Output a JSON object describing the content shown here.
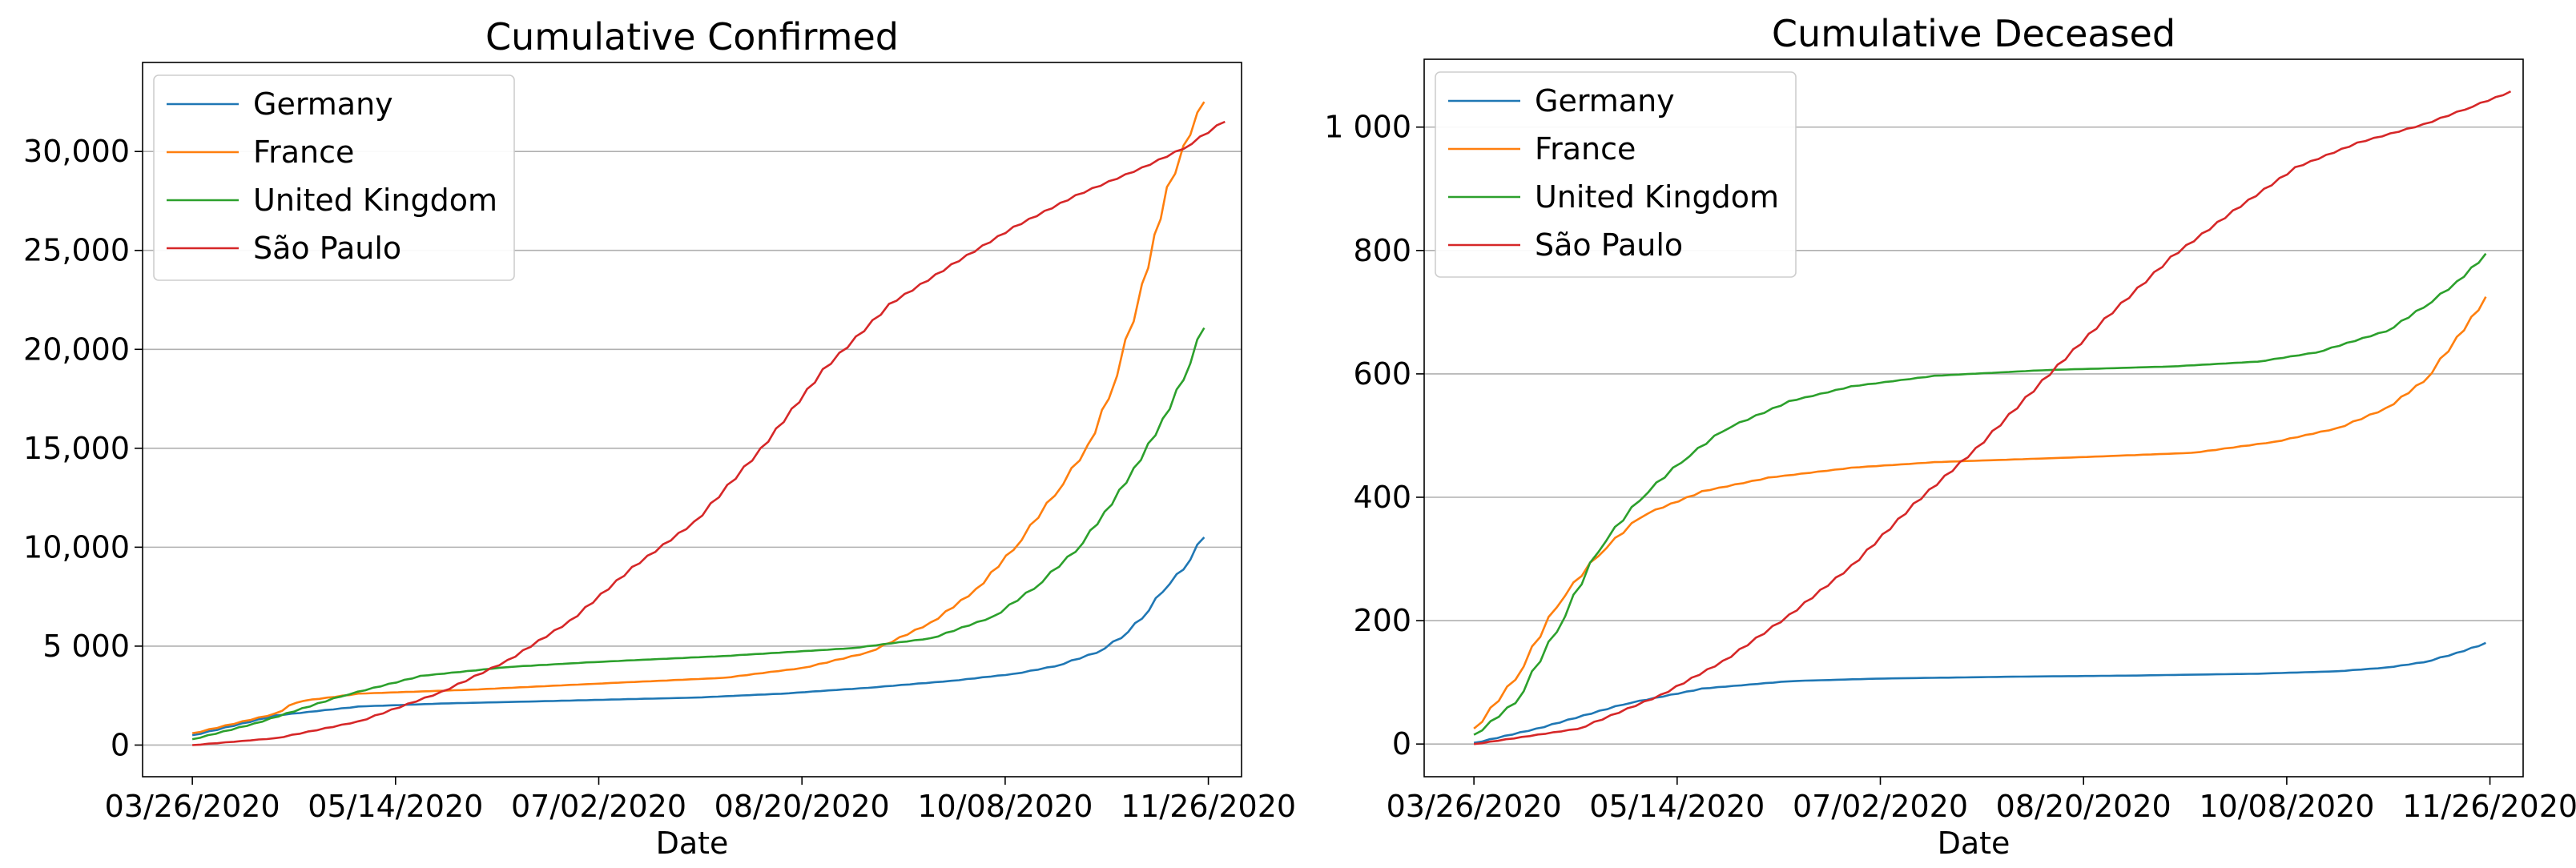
{
  "chart_data": [
    {
      "type": "line",
      "title": "Cumulative Confirmed",
      "xlabel": "Date",
      "ylabel": "",
      "x_ticks": [
        "03/26/2020",
        "05/14/2020",
        "07/02/2020",
        "08/20/2020",
        "10/08/2020",
        "11/26/2020"
      ],
      "xlim": [
        "2020-03-14",
        "2020-12-04"
      ],
      "ylim": [
        -1600,
        34500
      ],
      "y_ticks": [
        0,
        5000,
        10000,
        15000,
        20000,
        25000,
        30000
      ],
      "y_tick_labels": [
        "0",
        "5 000",
        "10,000",
        "15,000",
        "20,000",
        "25,000",
        "30,000"
      ],
      "grid": "horizontal",
      "legend": "top-left",
      "series": [
        {
          "name": "Germany",
          "color": "#1f77b4",
          "points": [
            [
              "2020-03-26",
              500
            ],
            [
              "2020-04-15",
              1500
            ],
            [
              "2020-05-05",
              1950
            ],
            [
              "2020-05-25",
              2100
            ],
            [
              "2020-06-15",
              2200
            ],
            [
              "2020-07-05",
              2300
            ],
            [
              "2020-07-25",
              2400
            ],
            [
              "2020-08-15",
              2600
            ],
            [
              "2020-09-05",
              2900
            ],
            [
              "2020-09-25",
              3250
            ],
            [
              "2020-10-10",
              3600
            ],
            [
              "2020-10-20",
              4000
            ],
            [
              "2020-10-30",
              4700
            ],
            [
              "2020-11-05",
              5500
            ],
            [
              "2020-11-10",
              6500
            ],
            [
              "2020-11-15",
              7900
            ],
            [
              "2020-11-20",
              9000
            ],
            [
              "2020-11-25",
              10700
            ]
          ]
        },
        {
          "name": "France",
          "color": "#ff7f0e",
          "points": [
            [
              "2020-03-26",
              600
            ],
            [
              "2020-04-15",
              1600
            ],
            [
              "2020-04-20",
              2200
            ],
            [
              "2020-05-05",
              2600
            ],
            [
              "2020-06-01",
              2800
            ],
            [
              "2020-07-01",
              3100
            ],
            [
              "2020-08-01",
              3400
            ],
            [
              "2020-08-20",
              3900
            ],
            [
              "2020-09-05",
              4700
            ],
            [
              "2020-09-20",
              6200
            ],
            [
              "2020-10-01",
              7900
            ],
            [
              "2020-10-10",
              10000
            ],
            [
              "2020-10-20",
              12800
            ],
            [
              "2020-10-28",
              15200
            ],
            [
              "2020-11-02",
              17800
            ],
            [
              "2020-11-06",
              20500
            ],
            [
              "2020-11-10",
              23300
            ],
            [
              "2020-11-13",
              25800
            ],
            [
              "2020-11-16",
              28200
            ],
            [
              "2020-11-20",
              30300
            ],
            [
              "2020-11-25",
              32800
            ]
          ]
        },
        {
          "name": "United Kingdom",
          "color": "#2ca02c",
          "points": [
            [
              "2020-03-26",
              300
            ],
            [
              "2020-04-10",
              1100
            ],
            [
              "2020-05-01",
              2500
            ],
            [
              "2020-05-20",
              3500
            ],
            [
              "2020-06-10",
              3950
            ],
            [
              "2020-07-01",
              4200
            ],
            [
              "2020-08-01",
              4500
            ],
            [
              "2020-09-01",
              4900
            ],
            [
              "2020-09-20",
              5400
            ],
            [
              "2020-10-05",
              6500
            ],
            [
              "2020-10-15",
              8000
            ],
            [
              "2020-10-25",
              9900
            ],
            [
              "2020-11-01",
              11800
            ],
            [
              "2020-11-08",
              14000
            ],
            [
              "2020-11-15",
              16500
            ],
            [
              "2020-11-20",
              18700
            ],
            [
              "2020-11-25",
              21400
            ]
          ]
        },
        {
          "name": "São Paulo",
          "color": "#d62728",
          "points": [
            [
              "2020-03-26",
              0
            ],
            [
              "2020-04-15",
              350
            ],
            [
              "2020-05-05",
              1200
            ],
            [
              "2020-05-25",
              2700
            ],
            [
              "2020-06-10",
              4300
            ],
            [
              "2020-06-25",
              6300
            ],
            [
              "2020-07-10",
              9000
            ],
            [
              "2020-07-25",
              11300
            ],
            [
              "2020-08-10",
              15000
            ],
            [
              "2020-08-25",
              19000
            ],
            [
              "2020-09-10",
              22300
            ],
            [
              "2020-09-25",
              24300
            ],
            [
              "2020-10-10",
              26200
            ],
            [
              "2020-10-25",
              27800
            ],
            [
              "2020-11-10",
              29200
            ],
            [
              "2020-11-20",
              30200
            ],
            [
              "2020-11-30",
              31600
            ]
          ]
        }
      ]
    },
    {
      "type": "line",
      "title": "Cumulative Deceased",
      "xlabel": "Date",
      "ylabel": "",
      "x_ticks": [
        "03/26/2020",
        "05/14/2020",
        "07/02/2020",
        "08/20/2020",
        "10/08/2020",
        "11/26/2020"
      ],
      "xlim": [
        "2020-03-14",
        "2020-12-04"
      ],
      "ylim": [
        -53,
        1110
      ],
      "y_ticks": [
        0,
        200,
        400,
        600,
        800,
        1000
      ],
      "y_tick_labels": [
        "0",
        "200",
        "400",
        "600",
        "800",
        "1 000"
      ],
      "grid": "horizontal",
      "legend": "top-left",
      "series": [
        {
          "name": "Germany",
          "color": "#1f77b4",
          "points": [
            [
              "2020-03-26",
              2
            ],
            [
              "2020-04-10",
              25
            ],
            [
              "2020-05-01",
              65
            ],
            [
              "2020-05-20",
              90
            ],
            [
              "2020-06-10",
              102
            ],
            [
              "2020-07-01",
              106
            ],
            [
              "2020-08-01",
              109
            ],
            [
              "2020-09-01",
              111
            ],
            [
              "2020-10-01",
              114
            ],
            [
              "2020-10-20",
              118
            ],
            [
              "2020-11-01",
              124
            ],
            [
              "2020-11-10",
              133
            ],
            [
              "2020-11-18",
              148
            ],
            [
              "2020-11-25",
              164
            ]
          ]
        },
        {
          "name": "France",
          "color": "#ff7f0e",
          "points": [
            [
              "2020-03-26",
              25
            ],
            [
              "2020-04-05",
              110
            ],
            [
              "2020-04-15",
              230
            ],
            [
              "2020-04-25",
              310
            ],
            [
              "2020-05-05",
              370
            ],
            [
              "2020-05-20",
              410
            ],
            [
              "2020-06-05",
              432
            ],
            [
              "2020-06-25",
              448
            ],
            [
              "2020-07-15",
              457
            ],
            [
              "2020-08-15",
              464
            ],
            [
              "2020-09-15",
              472
            ],
            [
              "2020-10-05",
              490
            ],
            [
              "2020-10-20",
              512
            ],
            [
              "2020-11-01",
              545
            ],
            [
              "2020-11-10",
              590
            ],
            [
              "2020-11-18",
              660
            ],
            [
              "2020-11-25",
              725
            ]
          ]
        },
        {
          "name": "United Kingdom",
          "color": "#2ca02c",
          "points": [
            [
              "2020-03-26",
              15
            ],
            [
              "2020-04-05",
              70
            ],
            [
              "2020-04-15",
              190
            ],
            [
              "2020-04-25",
              320
            ],
            [
              "2020-05-05",
              400
            ],
            [
              "2020-05-15",
              460
            ],
            [
              "2020-05-25",
              510
            ],
            [
              "2020-06-10",
              556
            ],
            [
              "2020-06-25",
              580
            ],
            [
              "2020-07-15",
              597
            ],
            [
              "2020-08-10",
              606
            ],
            [
              "2020-09-10",
              612
            ],
            [
              "2020-10-01",
              620
            ],
            [
              "2020-10-15",
              635
            ],
            [
              "2020-11-01",
              670
            ],
            [
              "2020-11-10",
              710
            ],
            [
              "2020-11-18",
              750
            ],
            [
              "2020-11-25",
              795
            ]
          ]
        },
        {
          "name": "São Paulo",
          "color": "#d62728",
          "points": [
            [
              "2020-03-26",
              0
            ],
            [
              "2020-04-20",
              25
            ],
            [
              "2020-05-10",
              80
            ],
            [
              "2020-05-25",
              135
            ],
            [
              "2020-06-10",
              210
            ],
            [
              "2020-06-25",
              290
            ],
            [
              "2020-07-10",
              390
            ],
            [
              "2020-07-25",
              480
            ],
            [
              "2020-08-10",
              590
            ],
            [
              "2020-08-25",
              690
            ],
            [
              "2020-09-10",
              790
            ],
            [
              "2020-09-25",
              865
            ],
            [
              "2020-10-10",
              935
            ],
            [
              "2020-10-25",
              975
            ],
            [
              "2020-11-10",
              1005
            ],
            [
              "2020-11-20",
              1030
            ],
            [
              "2020-12-01",
              1058
            ]
          ]
        }
      ]
    }
  ]
}
